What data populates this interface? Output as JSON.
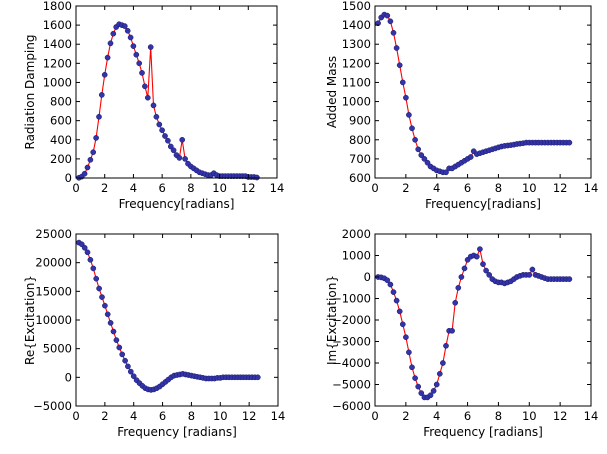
{
  "chart_data": [
    {
      "type": "line",
      "xlabel": "Frequency[radians]",
      "ylabel": "Radiation Damping",
      "xlim": [
        0,
        14
      ],
      "ylim": [
        0,
        1800
      ],
      "xticks": [
        0,
        2,
        4,
        6,
        8,
        10,
        12,
        14
      ],
      "yticks": [
        0,
        200,
        400,
        600,
        800,
        1000,
        1200,
        1400,
        1600,
        1800
      ],
      "line_color": "#ff0000",
      "marker_color": "#3333aa",
      "series": [
        {
          "x": [
            0.2,
            0.4,
            0.6,
            0.8,
            1.0,
            1.2,
            1.4,
            1.6,
            1.8,
            2.0,
            2.2,
            2.4,
            2.6,
            2.8,
            3.0,
            3.2,
            3.4,
            3.6,
            3.8,
            4.0,
            4.2,
            4.4,
            4.6,
            4.8,
            5.0,
            5.2,
            5.4,
            5.6,
            5.8,
            6.0,
            6.2,
            6.4,
            6.6,
            6.8,
            7.0,
            7.2,
            7.4,
            7.6,
            7.8,
            8.0,
            8.2,
            8.4,
            8.6,
            8.8,
            9.0,
            9.2,
            9.4,
            9.6,
            9.8,
            10.0,
            10.2,
            10.4,
            10.6,
            10.8,
            11.0,
            11.2,
            11.4,
            11.6,
            11.8,
            12.0,
            12.2,
            12.4,
            12.6
          ],
          "y": [
            2,
            15,
            45,
            110,
            190,
            270,
            420,
            640,
            870,
            1080,
            1260,
            1410,
            1510,
            1580,
            1610,
            1600,
            1590,
            1540,
            1470,
            1380,
            1290,
            1200,
            1100,
            960,
            840,
            1370,
            760,
            640,
            560,
            500,
            440,
            390,
            330,
            290,
            240,
            210,
            400,
            200,
            150,
            120,
            100,
            80,
            60,
            50,
            40,
            30,
            30,
            50,
            30,
            20,
            20,
            20,
            20,
            20,
            20,
            20,
            20,
            20,
            20,
            10,
            10,
            10,
            5
          ]
        }
      ]
    },
    {
      "type": "line",
      "xlabel": "Frequency[radians]",
      "ylabel": "Added Mass",
      "xlim": [
        0,
        14
      ],
      "ylim": [
        600,
        1500
      ],
      "xticks": [
        0,
        2,
        4,
        6,
        8,
        10,
        12,
        14
      ],
      "yticks": [
        600,
        700,
        800,
        900,
        1000,
        1100,
        1200,
        1300,
        1400,
        1500
      ],
      "line_color": "#ff0000",
      "marker_color": "#3333aa",
      "series": [
        {
          "x": [
            0.2,
            0.4,
            0.6,
            0.8,
            1.0,
            1.2,
            1.4,
            1.6,
            1.8,
            2.0,
            2.2,
            2.4,
            2.6,
            2.8,
            3.0,
            3.2,
            3.4,
            3.6,
            3.8,
            4.0,
            4.2,
            4.4,
            4.6,
            4.8,
            5.0,
            5.2,
            5.4,
            5.6,
            5.8,
            6.0,
            6.2,
            6.4,
            6.6,
            6.8,
            7.0,
            7.2,
            7.4,
            7.6,
            7.8,
            8.0,
            8.2,
            8.4,
            8.6,
            8.8,
            9.0,
            9.2,
            9.4,
            9.6,
            9.8,
            10.0,
            10.2,
            10.4,
            10.6,
            10.8,
            11.0,
            11.2,
            11.4,
            11.6,
            11.8,
            12.0,
            12.2,
            12.4,
            12.6
          ],
          "y": [
            1410,
            1440,
            1455,
            1450,
            1420,
            1360,
            1280,
            1190,
            1100,
            1020,
            930,
            860,
            800,
            750,
            720,
            700,
            680,
            660,
            650,
            640,
            635,
            630,
            630,
            650,
            650,
            660,
            670,
            680,
            690,
            700,
            710,
            740,
            725,
            730,
            735,
            740,
            745,
            750,
            755,
            760,
            765,
            768,
            770,
            772,
            775,
            778,
            780,
            782,
            785,
            785,
            785,
            785,
            785,
            785,
            785,
            785,
            785,
            785,
            785,
            785,
            785,
            785,
            785
          ]
        }
      ]
    },
    {
      "type": "line",
      "xlabel": "Frequency [radians]",
      "ylabel": "Re{Excitation}",
      "xlim": [
        0,
        14
      ],
      "ylim": [
        -5000,
        25000
      ],
      "xticks": [
        0,
        2,
        4,
        6,
        8,
        10,
        12,
        14
      ],
      "yticks": [
        -5000,
        0,
        5000,
        10000,
        15000,
        20000,
        25000
      ],
      "ytick_labels": [
        "−5000",
        "0",
        "5000",
        "10000",
        "15000",
        "20000",
        "25000"
      ],
      "line_color": "#ff0000",
      "marker_color": "#3333aa",
      "series": [
        {
          "x": [
            0.2,
            0.4,
            0.6,
            0.8,
            1.0,
            1.2,
            1.4,
            1.6,
            1.8,
            2.0,
            2.2,
            2.4,
            2.6,
            2.8,
            3.0,
            3.2,
            3.4,
            3.6,
            3.8,
            4.0,
            4.2,
            4.4,
            4.6,
            4.8,
            5.0,
            5.2,
            5.4,
            5.6,
            5.8,
            6.0,
            6.2,
            6.4,
            6.6,
            6.8,
            7.0,
            7.2,
            7.4,
            7.6,
            7.8,
            8.0,
            8.2,
            8.4,
            8.6,
            8.8,
            9.0,
            9.2,
            9.4,
            9.6,
            9.8,
            10.0,
            10.2,
            10.4,
            10.6,
            10.8,
            11.0,
            11.2,
            11.4,
            11.6,
            11.8,
            12.0,
            12.2,
            12.4,
            12.6
          ],
          "y": [
            23500,
            23200,
            22600,
            21800,
            20500,
            19000,
            17200,
            15500,
            14000,
            12500,
            11000,
            9500,
            8000,
            6500,
            5200,
            4000,
            2900,
            1900,
            1000,
            200,
            -500,
            -1000,
            -1500,
            -1900,
            -2100,
            -2200,
            -2100,
            -1900,
            -1600,
            -1200,
            -800,
            -400,
            0,
            300,
            400,
            500,
            600,
            500,
            400,
            300,
            200,
            100,
            0,
            -100,
            -200,
            -200,
            -200,
            -200,
            -100,
            -100,
            0,
            0,
            0,
            0,
            0,
            0,
            0,
            0,
            0,
            0,
            0,
            0,
            0
          ]
        }
      ]
    },
    {
      "type": "line",
      "xlabel": "Frequency [radians]",
      "ylabel": "Im{Excitation}",
      "xlim": [
        0,
        14
      ],
      "ylim": [
        -6000,
        2000
      ],
      "xticks": [
        0,
        2,
        4,
        6,
        8,
        10,
        12,
        14
      ],
      "yticks": [
        -6000,
        -5000,
        -4000,
        -3000,
        -2000,
        -1000,
        0,
        1000,
        2000
      ],
      "ytick_labels": [
        "−6000",
        "−5000",
        "−4000",
        "−3000",
        "−2000",
        "−1000",
        "0",
        "1000",
        "2000"
      ],
      "line_color": "#ff0000",
      "marker_color": "#3333aa",
      "series": [
        {
          "x": [
            0.2,
            0.4,
            0.6,
            0.8,
            1.0,
            1.2,
            1.4,
            1.6,
            1.8,
            2.0,
            2.2,
            2.4,
            2.6,
            2.8,
            3.0,
            3.2,
            3.4,
            3.6,
            3.8,
            4.0,
            4.2,
            4.4,
            4.6,
            4.8,
            5.0,
            5.2,
            5.4,
            5.6,
            5.8,
            6.0,
            6.2,
            6.4,
            6.6,
            6.8,
            7.0,
            7.2,
            7.4,
            7.6,
            7.8,
            8.0,
            8.2,
            8.4,
            8.6,
            8.8,
            9.0,
            9.2,
            9.4,
            9.6,
            9.8,
            10.0,
            10.2,
            10.4,
            10.6,
            10.8,
            11.0,
            11.2,
            11.4,
            11.6,
            11.8,
            12.0,
            12.2,
            12.4,
            12.6
          ],
          "y": [
            0,
            -20,
            -60,
            -150,
            -350,
            -700,
            -1100,
            -1600,
            -2200,
            -2800,
            -3500,
            -4200,
            -4700,
            -5100,
            -5400,
            -5600,
            -5600,
            -5500,
            -5300,
            -5000,
            -4500,
            -4000,
            -3200,
            -2500,
            -2500,
            -1200,
            -500,
            0,
            400,
            800,
            950,
            1000,
            950,
            1300,
            600,
            300,
            100,
            -100,
            -200,
            -250,
            -250,
            -300,
            -250,
            -200,
            -100,
            0,
            50,
            100,
            100,
            100,
            350,
            100,
            50,
            0,
            -50,
            -100,
            -100,
            -100,
            -100,
            -100,
            -100,
            -100,
            -100
          ]
        }
      ]
    }
  ]
}
